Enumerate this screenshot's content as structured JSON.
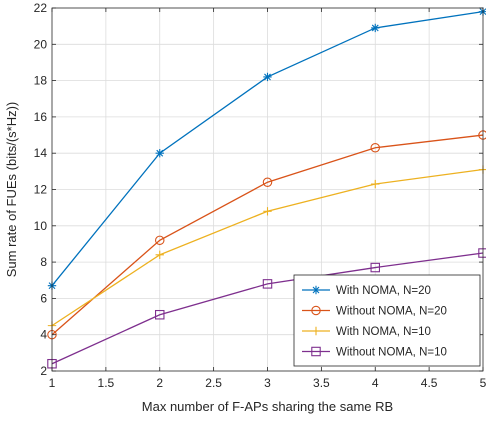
{
  "chart_data": {
    "type": "line",
    "xlabel": "Max number of F-APs sharing the same RB",
    "ylabel": "Sum rate of FUEs (bits/(s*Hz))",
    "x": [
      1,
      2,
      3,
      4,
      5
    ],
    "xlim": [
      1,
      5
    ],
    "ylim": [
      2,
      22
    ],
    "x_ticks": [
      1,
      1.5,
      2,
      2.5,
      3,
      3.5,
      4,
      4.5,
      5
    ],
    "x_tick_labels": [
      "1",
      "1.5",
      "2",
      "2.5",
      "3",
      "3.5",
      "4",
      "4.5",
      "5"
    ],
    "y_ticks": [
      2,
      4,
      6,
      8,
      10,
      12,
      14,
      16,
      18,
      20,
      22
    ],
    "y_tick_labels": [
      "2",
      "4",
      "6",
      "8",
      "10",
      "12",
      "14",
      "16",
      "18",
      "20",
      "22"
    ],
    "grid": true,
    "legend_position": "bottom-right",
    "series": [
      {
        "name": "With NOMA, N=20",
        "values": [
          6.7,
          14.0,
          18.2,
          20.9,
          21.8
        ],
        "color": "#0072BD",
        "marker": "asterisk"
      },
      {
        "name": "Without NOMA, N=20",
        "values": [
          4.0,
          9.2,
          12.4,
          14.3,
          15.0
        ],
        "color": "#D95319",
        "marker": "circle"
      },
      {
        "name": "With NOMA, N=10",
        "values": [
          4.5,
          8.4,
          10.8,
          12.3,
          13.1
        ],
        "color": "#EDB120",
        "marker": "plus"
      },
      {
        "name": "Without NOMA, N=10",
        "values": [
          2.4,
          5.1,
          6.8,
          7.7,
          8.5
        ],
        "color": "#7E2F8E",
        "marker": "square"
      }
    ]
  }
}
